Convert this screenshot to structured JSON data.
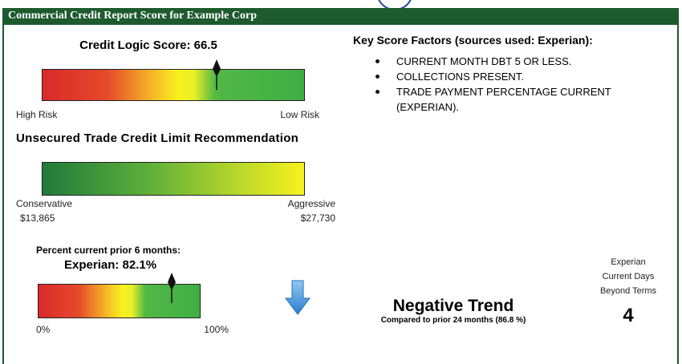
{
  "header": {
    "title": "Commercial Credit Report Score for Example Corp"
  },
  "score": {
    "title": "Credit Logic Score: 66.5",
    "low_label": "High Risk",
    "high_label": "Low Risk"
  },
  "limit": {
    "title": "Unsecured Trade Credit Limit Recommendation",
    "low_label": "Conservative",
    "low_value": "$13,865",
    "high_label": "Aggressive",
    "high_value": "$27,730"
  },
  "percent_current": {
    "title": "Percent current prior 6 months:",
    "value": "Experian: 82.1%",
    "min_label": "0%",
    "max_label": "100%"
  },
  "trend": {
    "title": "Negative Trend",
    "subtitle": "Compared to prior 24 months (86.8 %)"
  },
  "days_beyond_terms": {
    "label_lines": [
      "Experian",
      "Current Days",
      "Beyond Terms"
    ],
    "value": 4
  },
  "factors": {
    "title": "Key Score Factors (sources used: Experian):",
    "items": [
      "CURRENT MONTH DBT 5 OR LESS.",
      "COLLECTIONS PRESENT.",
      "TRADE PAYMENT PERCENTAGE CURRENT (EXPERIAN)."
    ]
  }
}
